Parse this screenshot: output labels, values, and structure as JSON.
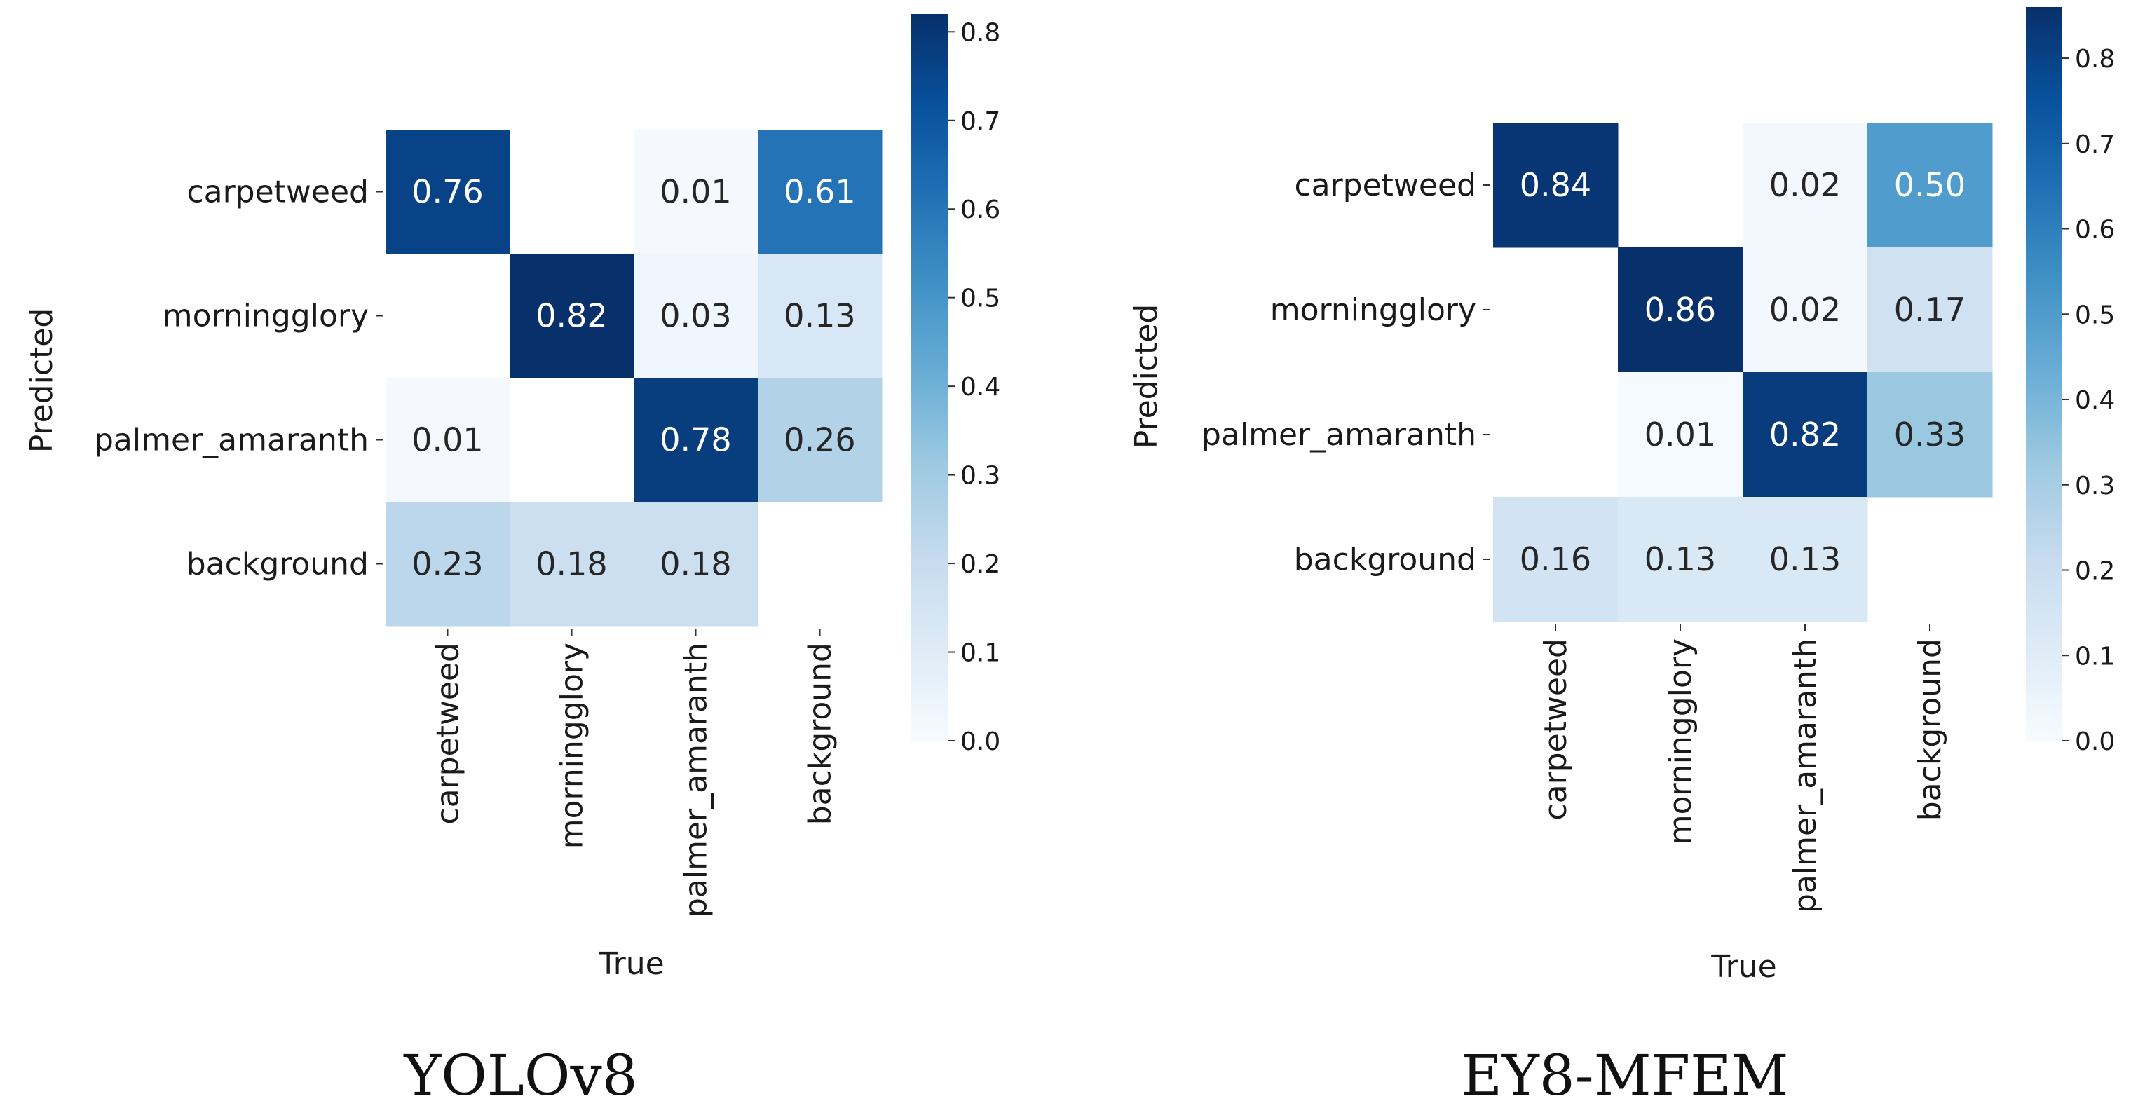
{
  "chart_data": [
    {
      "type": "heatmap",
      "caption": "YOLOv8",
      "xlabel": "True",
      "ylabel": "Predicted",
      "row_labels": [
        "carpetweed",
        "morningglory",
        "palmer_amaranth",
        "background"
      ],
      "col_labels": [
        "carpetweed",
        "morningglory",
        "palmer_amaranth",
        "background"
      ],
      "values": [
        [
          0.76,
          null,
          0.01,
          0.61
        ],
        [
          null,
          0.82,
          0.03,
          0.13
        ],
        [
          0.01,
          null,
          0.78,
          0.26
        ],
        [
          0.23,
          0.18,
          0.18,
          null
        ]
      ],
      "value_labels": [
        [
          "0.76",
          "",
          "0.01",
          "0.61"
        ],
        [
          "",
          "0.82",
          "0.03",
          "0.13"
        ],
        [
          "0.01",
          "",
          "0.78",
          "0.26"
        ],
        [
          "0.23",
          "0.18",
          "0.18",
          ""
        ]
      ],
      "colorbar": {
        "min": 0.0,
        "max": 0.82,
        "ticks": [
          0.0,
          0.1,
          0.2,
          0.3,
          0.4,
          0.5,
          0.6,
          0.7,
          0.8
        ],
        "tick_labels": [
          "0.0",
          "0.1",
          "0.2",
          "0.3",
          "0.4",
          "0.5",
          "0.6",
          "0.7",
          "0.8"
        ]
      },
      "colormap": "Blues"
    },
    {
      "type": "heatmap",
      "caption": "EY8-MFEM",
      "xlabel": "True",
      "ylabel": "Predicted",
      "row_labels": [
        "carpetweed",
        "morningglory",
        "palmer_amaranth",
        "background"
      ],
      "col_labels": [
        "carpetweed",
        "morningglory",
        "palmer_amaranth",
        "background"
      ],
      "values": [
        [
          0.84,
          null,
          0.02,
          0.5
        ],
        [
          null,
          0.86,
          0.02,
          0.17
        ],
        [
          null,
          0.01,
          0.82,
          0.33
        ],
        [
          0.16,
          0.13,
          0.13,
          null
        ]
      ],
      "value_labels": [
        [
          "0.84",
          "",
          "0.02",
          "0.50"
        ],
        [
          "",
          "0.86",
          "0.02",
          "0.17"
        ],
        [
          "",
          "0.01",
          "0.82",
          "0.33"
        ],
        [
          "0.16",
          "0.13",
          "0.13",
          ""
        ]
      ],
      "colorbar": {
        "min": 0.0,
        "max": 0.86,
        "ticks": [
          0.0,
          0.1,
          0.2,
          0.3,
          0.4,
          0.5,
          0.6,
          0.7,
          0.8
        ],
        "tick_labels": [
          "0.0",
          "0.1",
          "0.2",
          "0.3",
          "0.4",
          "0.5",
          "0.6",
          "0.7",
          "0.8"
        ]
      },
      "colormap": "Blues"
    }
  ]
}
